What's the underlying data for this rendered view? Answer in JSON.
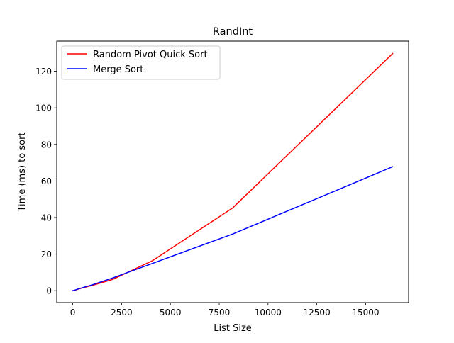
{
  "chart_data": {
    "type": "line",
    "title": "RandInt",
    "xlabel": "List Size",
    "ylabel": "Time (ms) to sort",
    "xlim": [
      -820,
      17200
    ],
    "ylim": [
      -6.5,
      136.5
    ],
    "xticks": [
      0,
      2500,
      5000,
      7500,
      10000,
      12500,
      15000
    ],
    "xtick_labels": [
      "0",
      "2500",
      "5000",
      "7500",
      "10000",
      "12500",
      "15000"
    ],
    "yticks": [
      0,
      20,
      40,
      60,
      80,
      100,
      120
    ],
    "ytick_labels": [
      "0",
      "20",
      "40",
      "60",
      "80",
      "100",
      "120"
    ],
    "grid": false,
    "legend_position": "top-left",
    "series": [
      {
        "name": "Random Pivot Quick Sort",
        "color": "#ff0000",
        "x": [
          0,
          128,
          256,
          512,
          1024,
          2048,
          4096,
          8192,
          16384
        ],
        "y": [
          0.0,
          0.3,
          0.8,
          1.6,
          3.0,
          6.2,
          16.5,
          45.3,
          129.7
        ]
      },
      {
        "name": "Merge Sort",
        "color": "#0000ff",
        "x": [
          0,
          128,
          256,
          512,
          1024,
          2048,
          4096,
          8192,
          16384
        ],
        "y": [
          0.0,
          0.4,
          0.9,
          1.7,
          3.3,
          7.0,
          15.0,
          31.0,
          67.8
        ]
      }
    ]
  }
}
